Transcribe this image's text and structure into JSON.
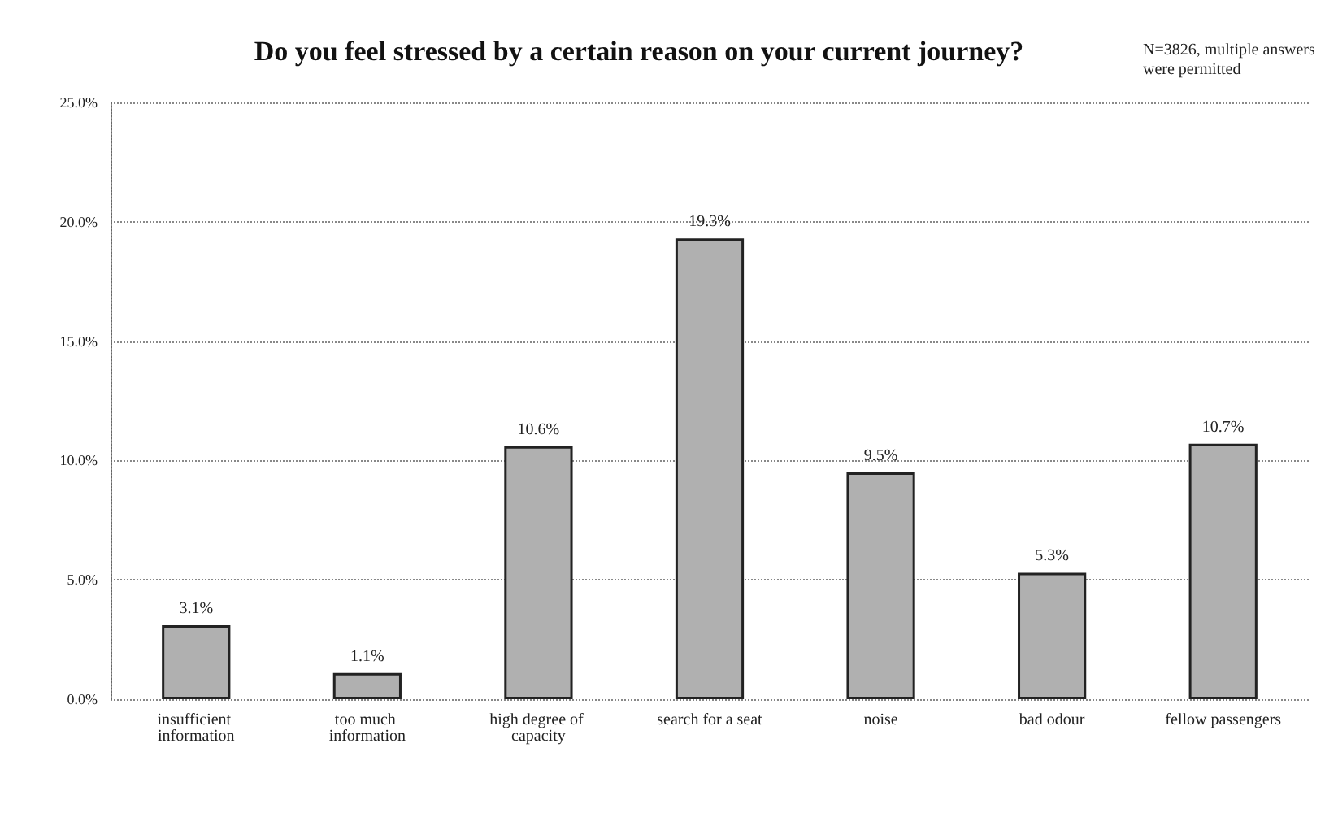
{
  "chart_data": {
    "type": "bar",
    "title": "Do you feel stressed by a certain reason on your current journey?",
    "annotations": [
      "N=3826, multiple answers were permitted"
    ],
    "categories": [
      "insufficient information",
      "too much information",
      "high degree of capacity",
      "search for a seat",
      "noise",
      "bad odour",
      "fellow passengers"
    ],
    "values": [
      3.1,
      1.1,
      10.6,
      19.3,
      9.5,
      5.3,
      10.7
    ],
    "value_labels": [
      "3.1%",
      "1.1%",
      "10.6%",
      "19.3%",
      "9.5%",
      "5.3%",
      "10.7%"
    ],
    "color": "#b0b0b0",
    "ylim": [
      0,
      25
    ],
    "yticks": [
      {
        "value": 0,
        "label": "0.0%"
      },
      {
        "value": 5,
        "label": "5.0%"
      },
      {
        "value": 10,
        "label": "10.0%"
      },
      {
        "value": 15,
        "label": "15.0%"
      },
      {
        "value": 20,
        "label": "20.0%"
      },
      {
        "value": 25,
        "label": "25.0%"
      }
    ],
    "grid": "y"
  }
}
